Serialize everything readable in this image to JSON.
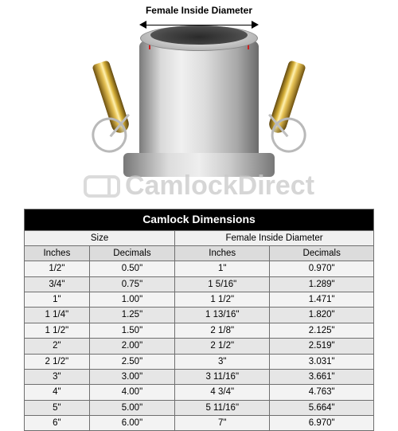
{
  "diagram": {
    "label": "Female Inside Diameter",
    "rule_color": "#cc1f1f",
    "body_metal_gradient": [
      "#7a7a7a",
      "#d9d9d9",
      "#f0f0f0",
      "#dcdcdc",
      "#a8a8a8",
      "#6b6b6b"
    ],
    "brass_gradient": [
      "#7a5a12",
      "#e6c255",
      "#fff1b0",
      "#d8b23a",
      "#6e5212"
    ]
  },
  "watermark": {
    "text": "CamlockDirect",
    "color": "#c9c9c9",
    "fontsize": 34
  },
  "table": {
    "title": "Camlock Dimensions",
    "group_headers": [
      "Size",
      "Female Inside Diameter"
    ],
    "column_headers": [
      "Inches",
      "Decimals",
      "Inches",
      "Decimals"
    ],
    "colors": {
      "title_bg": "#000000",
      "title_fg": "#ffffff",
      "group_bg": "#f0f0f0",
      "head_bg": "#dcdcdc",
      "row_odd_bg": "#f3f3f3",
      "row_even_bg": "#e6e6e6",
      "border": "#6f6f6f"
    },
    "font_size": 11.5,
    "rows": [
      [
        "1/2\"",
        "0.50\"",
        "1\"",
        "0.970\""
      ],
      [
        "3/4\"",
        "0.75\"",
        "1 5/16\"",
        "1.289\""
      ],
      [
        "1\"",
        "1.00\"",
        "1 1/2\"",
        "1.471\""
      ],
      [
        "1 1/4\"",
        "1.25\"",
        "1 13/16\"",
        "1.820\""
      ],
      [
        "1 1/2\"",
        "1.50\"",
        "2 1/8\"",
        "2.125\""
      ],
      [
        "2\"",
        "2.00\"",
        "2 1/2\"",
        "2.519\""
      ],
      [
        "2 1/2\"",
        "2.50\"",
        "3\"",
        "3.031\""
      ],
      [
        "3\"",
        "3.00\"",
        "3 11/16\"",
        "3.661\""
      ],
      [
        "4\"",
        "4.00\"",
        "4 3/4\"",
        "4.763\""
      ],
      [
        "5\"",
        "5.00\"",
        "5 11/16\"",
        "5.664\""
      ],
      [
        "6\"",
        "6.00\"",
        "7\"",
        "6.970\""
      ]
    ]
  }
}
